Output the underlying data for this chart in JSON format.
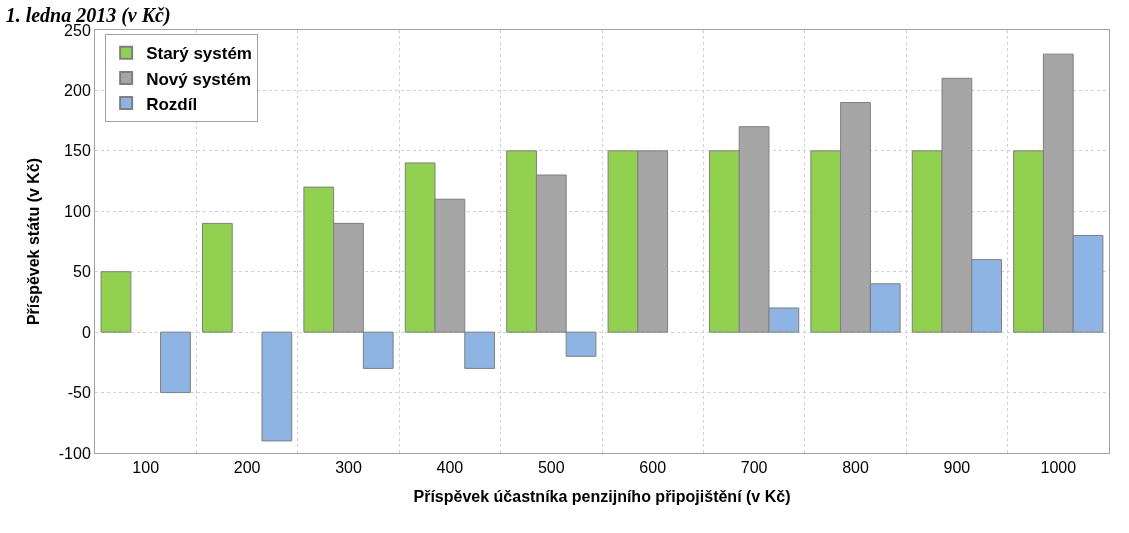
{
  "chart_data": {
    "type": "bar",
    "title": "1. ledna 2013 (v Kč)",
    "xlabel": "Příspěvek účastníka penzijního připojištění (v Kč)",
    "ylabel": "Příspěvek státu (v Kč)",
    "categories": [
      "100",
      "200",
      "300",
      "400",
      "500",
      "600",
      "700",
      "800",
      "900",
      "1000"
    ],
    "series": [
      {
        "name": "Starý systém",
        "color": "#92d050",
        "values": [
          50,
          90,
          120,
          140,
          150,
          150,
          150,
          150,
          150,
          150
        ]
      },
      {
        "name": "Nový systém",
        "color": "#a6a6a6",
        "values": [
          null,
          null,
          90,
          110,
          130,
          150,
          170,
          190,
          210,
          230
        ]
      },
      {
        "name": "Rozdíl",
        "color": "#8db4e2",
        "values": [
          -50,
          -90,
          -30,
          -30,
          -20,
          null,
          20,
          40,
          60,
          80
        ]
      }
    ],
    "ylim": [
      -100,
      250
    ],
    "yticks": [
      -100,
      -50,
      0,
      50,
      100,
      150,
      200,
      250
    ],
    "grid": true,
    "legend": "top left"
  }
}
